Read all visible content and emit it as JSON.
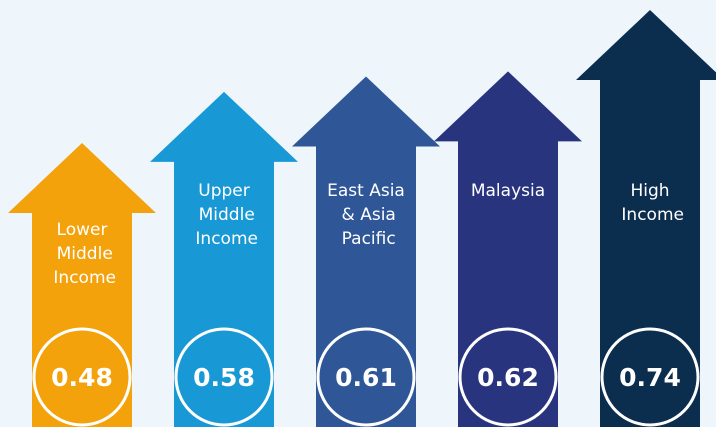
{
  "chart_data": {
    "type": "arrow-bar",
    "categories": [
      "Lower\nMiddle\nIncome",
      "Upper\nMiddle\nIncome",
      "East Asia\n& Asia\nPacific",
      "Malaysia",
      "High\nIncome"
    ],
    "values": [
      0.48,
      0.58,
      0.61,
      0.62,
      0.74
    ],
    "colors": [
      "#f4a20c",
      "#1899d6",
      "#2f5797",
      "#29347f",
      "#0b2d4e"
    ]
  }
}
